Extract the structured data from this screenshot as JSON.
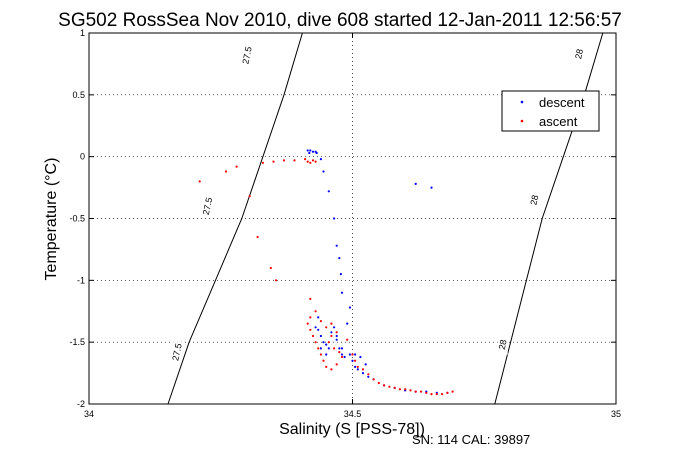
{
  "chart_data": {
    "type": "scatter",
    "title": "SG502 RossSea Nov 2010, dive 608 started 12-Jan-2011 12:56:57",
    "xlabel": "Salinity (S [PSS-78])",
    "ylabel": "Temperature (°C)",
    "xlim": [
      34,
      35
    ],
    "ylim": [
      -2,
      1
    ],
    "x_ticks": [
      "34",
      "34.5",
      "35"
    ],
    "y_ticks": [
      "-2",
      "-1.5",
      "-1",
      "-0.5",
      "0",
      "0.5",
      "1"
    ],
    "grid": true,
    "legend_position": "top-right",
    "footer": "SN: 114  CAL: 39897",
    "contours": [
      {
        "level": "27.5",
        "points": [
          [
            34.15,
            -2.0
          ],
          [
            34.19,
            -1.5
          ],
          [
            34.24,
            -1.0
          ],
          [
            34.29,
            -0.5
          ],
          [
            34.33,
            0.0
          ],
          [
            34.37,
            0.5
          ],
          [
            34.405,
            1.0
          ]
        ],
        "labels": [
          {
            "text": "27.5",
            "x": 34.167,
            "y": -1.58
          },
          {
            "text": "27.5",
            "x": 34.225,
            "y": -0.4
          },
          {
            "text": "27.5",
            "x": 34.3,
            "y": 0.82
          }
        ]
      },
      {
        "level": "28",
        "points": [
          [
            34.77,
            -2.0
          ],
          [
            34.8,
            -1.5
          ],
          [
            34.83,
            -1.0
          ],
          [
            34.86,
            -0.5
          ],
          [
            34.9,
            0.0
          ],
          [
            34.94,
            0.5
          ],
          [
            34.975,
            1.0
          ]
        ],
        "labels": [
          {
            "text": "28",
            "x": 34.785,
            "y": -1.52
          },
          {
            "text": "28",
            "x": 34.845,
            "y": -0.35
          },
          {
            "text": "28",
            "x": 34.93,
            "y": 0.83
          }
        ]
      }
    ],
    "series": [
      {
        "name": "descent",
        "color": "#0000ff",
        "points": [
          [
            34.415,
            0.05
          ],
          [
            34.42,
            0.05
          ],
          [
            34.425,
            0.04
          ],
          [
            34.43,
            0.04
          ],
          [
            34.418,
            0.03
          ],
          [
            34.432,
            0.03
          ],
          [
            34.44,
            -0.02
          ],
          [
            34.445,
            -0.12
          ],
          [
            34.455,
            -0.28
          ],
          [
            34.465,
            -0.5
          ],
          [
            34.47,
            -0.72
          ],
          [
            34.475,
            -0.82
          ],
          [
            34.478,
            -0.95
          ],
          [
            34.48,
            -1.1
          ],
          [
            34.495,
            -1.22
          ],
          [
            34.62,
            -0.22
          ],
          [
            34.65,
            -0.25
          ],
          [
            34.43,
            -1.38
          ],
          [
            34.435,
            -1.4
          ],
          [
            34.44,
            -1.45
          ],
          [
            34.445,
            -1.5
          ],
          [
            34.45,
            -1.52
          ],
          [
            34.455,
            -1.55
          ],
          [
            34.46,
            -1.42
          ],
          [
            34.465,
            -1.38
          ],
          [
            34.47,
            -1.48
          ],
          [
            34.475,
            -1.55
          ],
          [
            34.48,
            -1.6
          ],
          [
            34.485,
            -1.62
          ],
          [
            34.49,
            -1.35
          ],
          [
            34.495,
            -1.6
          ],
          [
            34.5,
            -1.65
          ],
          [
            34.505,
            -1.7
          ],
          [
            34.51,
            -1.72
          ],
          [
            34.52,
            -1.75
          ],
          [
            34.53,
            -1.78
          ],
          [
            34.54,
            -1.8
          ],
          [
            34.56,
            -1.85
          ],
          [
            34.58,
            -1.87
          ],
          [
            34.6,
            -1.89
          ],
          [
            34.62,
            -1.9
          ],
          [
            34.64,
            -1.9
          ],
          [
            34.66,
            -1.91
          ],
          [
            34.68,
            -1.91
          ],
          [
            34.44,
            -1.55
          ],
          [
            34.45,
            -1.6
          ],
          [
            34.435,
            -1.3
          ],
          [
            34.47,
            -1.45
          ],
          [
            34.48,
            -1.55
          ],
          [
            34.505,
            -1.6
          ],
          [
            34.515,
            -1.62
          ],
          [
            34.525,
            -1.68
          ]
        ],
        "markers": []
      },
      {
        "name": "ascent",
        "color": "#ff0000",
        "points": [
          [
            34.21,
            -0.2
          ],
          [
            34.26,
            -0.12
          ],
          [
            34.28,
            -0.08
          ],
          [
            34.33,
            -0.05
          ],
          [
            34.35,
            -0.04
          ],
          [
            34.37,
            -0.03
          ],
          [
            34.39,
            -0.03
          ],
          [
            34.41,
            -0.02
          ],
          [
            34.415,
            -0.04
          ],
          [
            34.42,
            -0.05
          ],
          [
            34.425,
            -0.03
          ],
          [
            34.43,
            -0.04
          ],
          [
            34.305,
            -0.32
          ],
          [
            34.32,
            -0.65
          ],
          [
            34.345,
            -0.9
          ],
          [
            34.355,
            -1.0
          ],
          [
            34.42,
            -1.15
          ],
          [
            34.43,
            -1.25
          ],
          [
            34.42,
            -1.3
          ],
          [
            34.415,
            -1.35
          ],
          [
            34.42,
            -1.4
          ],
          [
            34.425,
            -1.45
          ],
          [
            34.43,
            -1.5
          ],
          [
            34.435,
            -1.55
          ],
          [
            34.44,
            -1.6
          ],
          [
            34.445,
            -1.65
          ],
          [
            34.45,
            -1.7
          ],
          [
            34.46,
            -1.72
          ],
          [
            34.47,
            -1.68
          ],
          [
            34.48,
            -1.62
          ],
          [
            34.475,
            -1.58
          ],
          [
            34.465,
            -1.55
          ],
          [
            34.455,
            -1.5
          ],
          [
            34.46,
            -1.45
          ],
          [
            34.47,
            -1.42
          ],
          [
            34.49,
            -1.48
          ],
          [
            34.5,
            -1.6
          ],
          [
            34.505,
            -1.65
          ],
          [
            34.51,
            -1.7
          ],
          [
            34.52,
            -1.72
          ],
          [
            34.53,
            -1.76
          ],
          [
            34.54,
            -1.8
          ],
          [
            34.55,
            -1.83
          ],
          [
            34.56,
            -1.85
          ],
          [
            34.57,
            -1.86
          ],
          [
            34.58,
            -1.87
          ],
          [
            34.59,
            -1.88
          ],
          [
            34.6,
            -1.88
          ],
          [
            34.61,
            -1.89
          ],
          [
            34.62,
            -1.9
          ],
          [
            34.63,
            -1.9
          ],
          [
            34.64,
            -1.91
          ],
          [
            34.65,
            -1.92
          ],
          [
            34.66,
            -1.92
          ],
          [
            34.67,
            -1.92
          ],
          [
            34.68,
            -1.91
          ],
          [
            34.69,
            -1.9
          ],
          [
            34.44,
            -1.33
          ],
          [
            34.45,
            -1.38
          ],
          [
            34.46,
            -1.35
          ]
        ]
      }
    ]
  }
}
